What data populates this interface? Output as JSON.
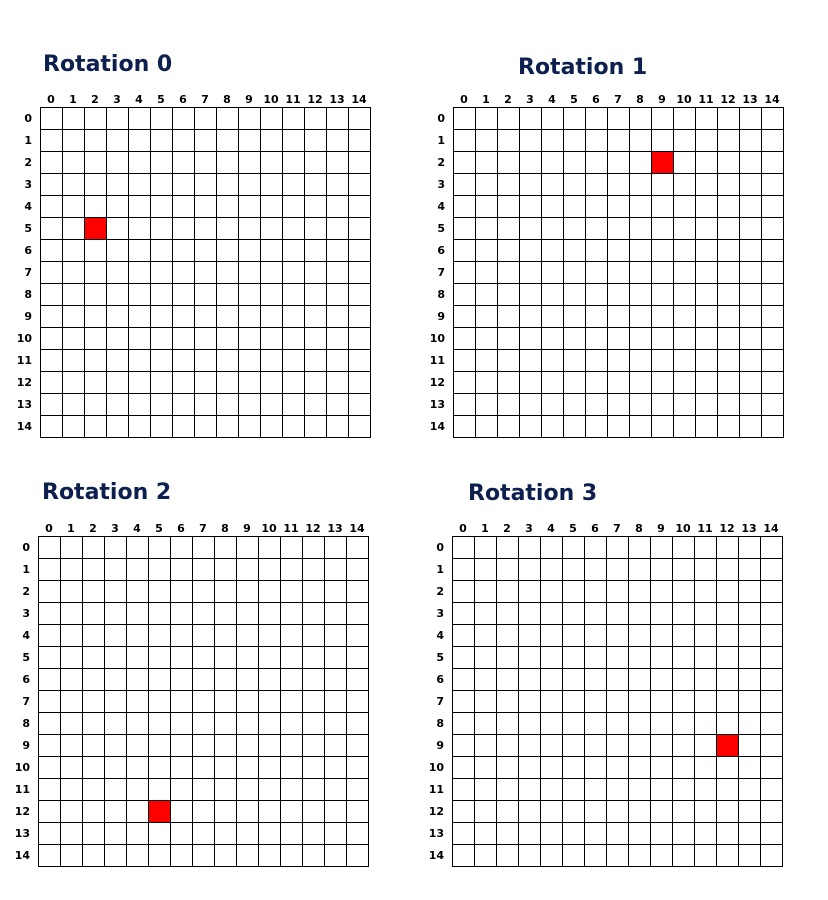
{
  "grid_size": 15,
  "axis_labels": [
    "0",
    "1",
    "2",
    "3",
    "4",
    "5",
    "6",
    "7",
    "8",
    "9",
    "10",
    "11",
    "12",
    "13",
    "14"
  ],
  "colors": {
    "title": "#0d1f4f",
    "grid_line": "#000000",
    "cell_background": "#ffffff",
    "highlight": "#ff0000"
  },
  "panels": [
    {
      "title": "Rotation 0",
      "highlighted_cell": {
        "row": 5,
        "col": 2
      }
    },
    {
      "title": "Rotation 1",
      "highlighted_cell": {
        "row": 2,
        "col": 9
      }
    },
    {
      "title": "Rotation 2",
      "highlighted_cell": {
        "row": 12,
        "col": 5
      }
    },
    {
      "title": "Rotation 3",
      "highlighted_cell": {
        "row": 9,
        "col": 12
      }
    }
  ]
}
